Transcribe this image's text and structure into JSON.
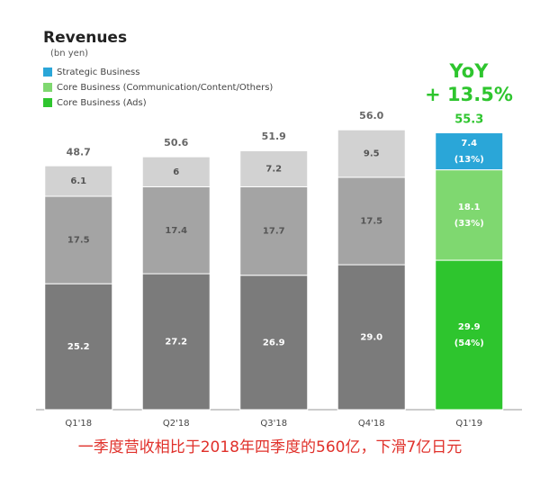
{
  "chart_data": {
    "type": "stacked-bar",
    "title": "Revenues",
    "subtitle": "(bn yen)",
    "categories": [
      "Q1'18",
      "Q2'18",
      "Q3'18",
      "Q4'18",
      "Q1'19"
    ],
    "series": [
      {
        "name": "Core Business (Ads)",
        "color": "#2ec52e",
        "colors": [
          "#7b7b7b",
          "#7b7b7b",
          "#7b7b7b",
          "#7b7b7b",
          "#2ec52e"
        ],
        "values": [
          25.2,
          27.2,
          26.9,
          29.0,
          29.9
        ],
        "value_labels": [
          "25.2",
          "27.2",
          "26.9",
          "29.0",
          "29.9"
        ],
        "share_label": "(54%)"
      },
      {
        "name": "Core Business (Communication/Content/Others)",
        "color": "#7fd870",
        "colors": [
          "#a4a4a4",
          "#a4a4a4",
          "#a4a4a4",
          "#a4a4a4",
          "#7fd870"
        ],
        "values": [
          17.5,
          17.4,
          17.7,
          17.5,
          18.1
        ],
        "share_label": "(33%)"
      },
      {
        "name": "Strategic Business",
        "color": "#2aa6d8",
        "colors": [
          "#d2d2d2",
          "#d2d2d2",
          "#d2d2d2",
          "#d2d2d2",
          "#2aa6d8"
        ],
        "values": [
          6.1,
          6.0,
          7.2,
          9.5,
          7.4
        ],
        "share_label": "(13%)"
      }
    ],
    "totals": [
      48.7,
      50.6,
      51.9,
      56.0,
      55.3
    ],
    "total_labels": [
      "48.7",
      "50.6",
      "51.9",
      "56.0",
      "55.3"
    ],
    "yoy_title": "YoY",
    "yoy_value": "+ 13.5%",
    "caption": "一季度营收相比于2018年四季度的560亿，下滑7亿日元"
  }
}
